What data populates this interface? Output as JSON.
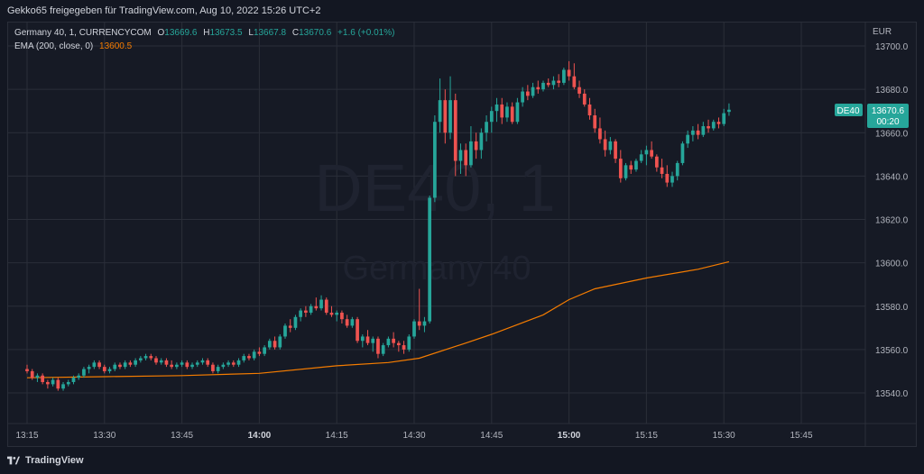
{
  "header": {
    "attribution": "Gekko65 freigegeben für TradingView.com, Aug 10, 2022 15:26 UTC+2"
  },
  "legend": {
    "symbol": "Germany 40, 1, CURRENCYCOM",
    "o_label": "O",
    "o": "13669.6",
    "h_label": "H",
    "h": "13673.5",
    "l_label": "L",
    "l": "13667.8",
    "c_label": "C",
    "c": "13670.6",
    "change": "+1.6 (+0.01%)",
    "ema_label": "EMA (200, close, 0)",
    "ema_value": "13600.5"
  },
  "watermark": {
    "symbol": "DE40, 1",
    "name": "Germany 40"
  },
  "price_axis": {
    "currency": "EUR"
  },
  "price_badge": {
    "ticker": "DE40",
    "price": "13670.6",
    "countdown": "00:20"
  },
  "footer": {
    "logo_text": "TradingView"
  },
  "colors": {
    "up": "#26a69a",
    "down": "#ef5350",
    "ema": "#f57c00",
    "background": "#131722",
    "grid": "#2a2e39",
    "text": "#b2b5be",
    "badge": "#26a69a"
  },
  "chart_data": {
    "type": "candlestick",
    "timeframe_minutes": 1,
    "y_axis": {
      "ticks": [
        13540,
        13560,
        13580,
        13600,
        13620,
        13640,
        13660,
        13680,
        13700
      ],
      "range": [
        13528,
        13705
      ],
      "currency": "EUR"
    },
    "x_axis": {
      "ticks": [
        {
          "time": "13:15",
          "bold": false
        },
        {
          "time": "13:30",
          "bold": false
        },
        {
          "time": "13:45",
          "bold": false
        },
        {
          "time": "14:00",
          "bold": true
        },
        {
          "time": "14:15",
          "bold": false
        },
        {
          "time": "14:30",
          "bold": false
        },
        {
          "time": "14:45",
          "bold": false
        },
        {
          "time": "15:00",
          "bold": true
        },
        {
          "time": "15:15",
          "bold": false
        },
        {
          "time": "15:30",
          "bold": false
        },
        {
          "time": "15:45",
          "bold": false
        }
      ],
      "start": "13:15",
      "end": "15:52"
    },
    "candles": [
      {
        "t": "13:15",
        "o": 13551,
        "h": 13553,
        "l": 13549,
        "c": 13550
      },
      {
        "t": "13:16",
        "o": 13550,
        "h": 13551,
        "l": 13546,
        "c": 13547
      },
      {
        "t": "13:17",
        "o": 13547,
        "h": 13549,
        "l": 13545,
        "c": 13548
      },
      {
        "t": "13:18",
        "o": 13548,
        "h": 13549,
        "l": 13544,
        "c": 13545
      },
      {
        "t": "13:19",
        "o": 13545,
        "h": 13546,
        "l": 13542,
        "c": 13544
      },
      {
        "t": "13:20",
        "o": 13544,
        "h": 13547,
        "l": 13543,
        "c": 13546
      },
      {
        "t": "13:21",
        "o": 13546,
        "h": 13547,
        "l": 13541,
        "c": 13542
      },
      {
        "t": "13:22",
        "o": 13542,
        "h": 13545,
        "l": 13541,
        "c": 13544
      },
      {
        "t": "13:23",
        "o": 13544,
        "h": 13546,
        "l": 13543,
        "c": 13545
      },
      {
        "t": "13:24",
        "o": 13545,
        "h": 13548,
        "l": 13544,
        "c": 13547
      },
      {
        "t": "13:25",
        "o": 13547,
        "h": 13549,
        "l": 13546,
        "c": 13548
      },
      {
        "t": "13:26",
        "o": 13548,
        "h": 13552,
        "l": 13547,
        "c": 13551
      },
      {
        "t": "13:27",
        "o": 13551,
        "h": 13553,
        "l": 13549,
        "c": 13552
      },
      {
        "t": "13:28",
        "o": 13552,
        "h": 13555,
        "l": 13551,
        "c": 13554
      },
      {
        "t": "13:29",
        "o": 13554,
        "h": 13555,
        "l": 13551,
        "c": 13552
      },
      {
        "t": "13:30",
        "o": 13552,
        "h": 13553,
        "l": 13549,
        "c": 13550
      },
      {
        "t": "13:31",
        "o": 13550,
        "h": 13552,
        "l": 13549,
        "c": 13551
      },
      {
        "t": "13:32",
        "o": 13551,
        "h": 13554,
        "l": 13550,
        "c": 13553
      },
      {
        "t": "13:33",
        "o": 13553,
        "h": 13554,
        "l": 13551,
        "c": 13552
      },
      {
        "t": "13:34",
        "o": 13552,
        "h": 13555,
        "l": 13551,
        "c": 13554
      },
      {
        "t": "13:35",
        "o": 13554,
        "h": 13555,
        "l": 13552,
        "c": 13553
      },
      {
        "t": "13:36",
        "o": 13553,
        "h": 13556,
        "l": 13552,
        "c": 13555
      },
      {
        "t": "13:37",
        "o": 13555,
        "h": 13557,
        "l": 13554,
        "c": 13556
      },
      {
        "t": "13:38",
        "o": 13556,
        "h": 13558,
        "l": 13555,
        "c": 13557
      },
      {
        "t": "13:39",
        "o": 13557,
        "h": 13558,
        "l": 13555,
        "c": 13556
      },
      {
        "t": "13:40",
        "o": 13556,
        "h": 13557,
        "l": 13553,
        "c": 13554
      },
      {
        "t": "13:41",
        "o": 13554,
        "h": 13556,
        "l": 13553,
        "c": 13555
      },
      {
        "t": "13:42",
        "o": 13555,
        "h": 13556,
        "l": 13552,
        "c": 13553
      },
      {
        "t": "13:43",
        "o": 13553,
        "h": 13555,
        "l": 13551,
        "c": 13552
      },
      {
        "t": "13:44",
        "o": 13552,
        "h": 13554,
        "l": 13551,
        "c": 13553
      },
      {
        "t": "13:45",
        "o": 13553,
        "h": 13555,
        "l": 13552,
        "c": 13554
      },
      {
        "t": "13:46",
        "o": 13554,
        "h": 13555,
        "l": 13551,
        "c": 13552
      },
      {
        "t": "13:47",
        "o": 13552,
        "h": 13554,
        "l": 13551,
        "c": 13553
      },
      {
        "t": "13:48",
        "o": 13553,
        "h": 13555,
        "l": 13552,
        "c": 13554
      },
      {
        "t": "13:49",
        "o": 13554,
        "h": 13556,
        "l": 13553,
        "c": 13555
      },
      {
        "t": "13:50",
        "o": 13555,
        "h": 13556,
        "l": 13552,
        "c": 13553
      },
      {
        "t": "13:51",
        "o": 13553,
        "h": 13554,
        "l": 13549,
        "c": 13550
      },
      {
        "t": "13:52",
        "o": 13550,
        "h": 13553,
        "l": 13549,
        "c": 13552
      },
      {
        "t": "13:53",
        "o": 13552,
        "h": 13554,
        "l": 13551,
        "c": 13553
      },
      {
        "t": "13:54",
        "o": 13553,
        "h": 13555,
        "l": 13552,
        "c": 13554
      },
      {
        "t": "13:55",
        "o": 13554,
        "h": 13555,
        "l": 13552,
        "c": 13553
      },
      {
        "t": "13:56",
        "o": 13553,
        "h": 13556,
        "l": 13552,
        "c": 13555
      },
      {
        "t": "13:57",
        "o": 13555,
        "h": 13558,
        "l": 13554,
        "c": 13557
      },
      {
        "t": "13:58",
        "o": 13557,
        "h": 13558,
        "l": 13555,
        "c": 13556
      },
      {
        "t": "13:59",
        "o": 13556,
        "h": 13560,
        "l": 13555,
        "c": 13559
      },
      {
        "t": "14:00",
        "o": 13559,
        "h": 13561,
        "l": 13557,
        "c": 13558
      },
      {
        "t": "14:01",
        "o": 13558,
        "h": 13562,
        "l": 13557,
        "c": 13561
      },
      {
        "t": "14:02",
        "o": 13561,
        "h": 13565,
        "l": 13560,
        "c": 13564
      },
      {
        "t": "14:03",
        "o": 13564,
        "h": 13566,
        "l": 13560,
        "c": 13561
      },
      {
        "t": "14:04",
        "o": 13561,
        "h": 13567,
        "l": 13560,
        "c": 13566
      },
      {
        "t": "14:05",
        "o": 13566,
        "h": 13572,
        "l": 13565,
        "c": 13571
      },
      {
        "t": "14:06",
        "o": 13571,
        "h": 13574,
        "l": 13568,
        "c": 13570
      },
      {
        "t": "14:07",
        "o": 13570,
        "h": 13576,
        "l": 13569,
        "c": 13575
      },
      {
        "t": "14:08",
        "o": 13575,
        "h": 13579,
        "l": 13573,
        "c": 13578
      },
      {
        "t": "14:09",
        "o": 13578,
        "h": 13580,
        "l": 13575,
        "c": 13577
      },
      {
        "t": "14:10",
        "o": 13577,
        "h": 13581,
        "l": 13576,
        "c": 13580
      },
      {
        "t": "14:11",
        "o": 13580,
        "h": 13584,
        "l": 13578,
        "c": 13579
      },
      {
        "t": "14:12",
        "o": 13579,
        "h": 13585,
        "l": 13578,
        "c": 13583
      },
      {
        "t": "14:13",
        "o": 13583,
        "h": 13584,
        "l": 13576,
        "c": 13577
      },
      {
        "t": "14:14",
        "o": 13577,
        "h": 13580,
        "l": 13575,
        "c": 13576
      },
      {
        "t": "14:15",
        "o": 13576,
        "h": 13578,
        "l": 13573,
        "c": 13577
      },
      {
        "t": "14:16",
        "o": 13577,
        "h": 13578,
        "l": 13572,
        "c": 13574
      },
      {
        "t": "14:17",
        "o": 13574,
        "h": 13576,
        "l": 13570,
        "c": 13571
      },
      {
        "t": "14:18",
        "o": 13571,
        "h": 13575,
        "l": 13570,
        "c": 13574
      },
      {
        "t": "14:19",
        "o": 13574,
        "h": 13575,
        "l": 13563,
        "c": 13564
      },
      {
        "t": "14:20",
        "o": 13564,
        "h": 13567,
        "l": 13561,
        "c": 13566
      },
      {
        "t": "14:21",
        "o": 13566,
        "h": 13569,
        "l": 13562,
        "c": 13563
      },
      {
        "t": "14:22",
        "o": 13563,
        "h": 13566,
        "l": 13559,
        "c": 13565
      },
      {
        "t": "14:23",
        "o": 13565,
        "h": 13566,
        "l": 13556,
        "c": 13558
      },
      {
        "t": "14:24",
        "o": 13558,
        "h": 13563,
        "l": 13557,
        "c": 13562
      },
      {
        "t": "14:25",
        "o": 13562,
        "h": 13566,
        "l": 13561,
        "c": 13565
      },
      {
        "t": "14:26",
        "o": 13565,
        "h": 13568,
        "l": 13561,
        "c": 13563
      },
      {
        "t": "14:27",
        "o": 13563,
        "h": 13564,
        "l": 13559,
        "c": 13562
      },
      {
        "t": "14:28",
        "o": 13562,
        "h": 13564,
        "l": 13558,
        "c": 13560
      },
      {
        "t": "14:29",
        "o": 13560,
        "h": 13567,
        "l": 13559,
        "c": 13566
      },
      {
        "t": "14:30",
        "o": 13566,
        "h": 13574,
        "l": 13565,
        "c": 13573
      },
      {
        "t": "14:31",
        "o": 13573,
        "h": 13588,
        "l": 13569,
        "c": 13571
      },
      {
        "t": "14:32",
        "o": 13571,
        "h": 13575,
        "l": 13568,
        "c": 13573
      },
      {
        "t": "14:33",
        "o": 13573,
        "h": 13631,
        "l": 13572,
        "c": 13630
      },
      {
        "t": "14:34",
        "o": 13630,
        "h": 13668,
        "l": 13628,
        "c": 13665
      },
      {
        "t": "14:35",
        "o": 13665,
        "h": 13685,
        "l": 13660,
        "c": 13675
      },
      {
        "t": "14:36",
        "o": 13675,
        "h": 13680,
        "l": 13655,
        "c": 13660
      },
      {
        "t": "14:37",
        "o": 13660,
        "h": 13686,
        "l": 13657,
        "c": 13675
      },
      {
        "t": "14:38",
        "o": 13675,
        "h": 13678,
        "l": 13640,
        "c": 13647
      },
      {
        "t": "14:39",
        "o": 13647,
        "h": 13655,
        "l": 13641,
        "c": 13652
      },
      {
        "t": "14:40",
        "o": 13652,
        "h": 13655,
        "l": 13640,
        "c": 13645
      },
      {
        "t": "14:41",
        "o": 13645,
        "h": 13663,
        "l": 13644,
        "c": 13656
      },
      {
        "t": "14:42",
        "o": 13656,
        "h": 13660,
        "l": 13648,
        "c": 13652
      },
      {
        "t": "14:43",
        "o": 13652,
        "h": 13662,
        "l": 13648,
        "c": 13660
      },
      {
        "t": "14:44",
        "o": 13660,
        "h": 13668,
        "l": 13656,
        "c": 13665
      },
      {
        "t": "14:45",
        "o": 13665,
        "h": 13672,
        "l": 13660,
        "c": 13670
      },
      {
        "t": "14:46",
        "o": 13670,
        "h": 13676,
        "l": 13665,
        "c": 13673
      },
      {
        "t": "14:47",
        "o": 13673,
        "h": 13676,
        "l": 13664,
        "c": 13667
      },
      {
        "t": "14:48",
        "o": 13667,
        "h": 13674,
        "l": 13665,
        "c": 13672
      },
      {
        "t": "14:49",
        "o": 13672,
        "h": 13674,
        "l": 13664,
        "c": 13665
      },
      {
        "t": "14:50",
        "o": 13665,
        "h": 13676,
        "l": 13664,
        "c": 13674
      },
      {
        "t": "14:51",
        "o": 13674,
        "h": 13681,
        "l": 13672,
        "c": 13679
      },
      {
        "t": "14:52",
        "o": 13679,
        "h": 13682,
        "l": 13675,
        "c": 13677
      },
      {
        "t": "14:53",
        "o": 13677,
        "h": 13683,
        "l": 13676,
        "c": 13681
      },
      {
        "t": "14:54",
        "o": 13681,
        "h": 13684,
        "l": 13678,
        "c": 13680
      },
      {
        "t": "14:55",
        "o": 13680,
        "h": 13684,
        "l": 13679,
        "c": 13683
      },
      {
        "t": "14:56",
        "o": 13683,
        "h": 13685,
        "l": 13681,
        "c": 13682
      },
      {
        "t": "14:57",
        "o": 13682,
        "h": 13686,
        "l": 13680,
        "c": 13684
      },
      {
        "t": "14:58",
        "o": 13684,
        "h": 13687,
        "l": 13681,
        "c": 13683
      },
      {
        "t": "14:59",
        "o": 13683,
        "h": 13690,
        "l": 13682,
        "c": 13689
      },
      {
        "t": "15:00",
        "o": 13689,
        "h": 13693,
        "l": 13684,
        "c": 13686
      },
      {
        "t": "15:01",
        "o": 13686,
        "h": 13692,
        "l": 13680,
        "c": 13681
      },
      {
        "t": "15:02",
        "o": 13681,
        "h": 13684,
        "l": 13676,
        "c": 13678
      },
      {
        "t": "15:03",
        "o": 13678,
        "h": 13680,
        "l": 13672,
        "c": 13673
      },
      {
        "t": "15:04",
        "o": 13673,
        "h": 13676,
        "l": 13666,
        "c": 13668
      },
      {
        "t": "15:05",
        "o": 13668,
        "h": 13671,
        "l": 13660,
        "c": 13662
      },
      {
        "t": "15:06",
        "o": 13662,
        "h": 13667,
        "l": 13655,
        "c": 13657
      },
      {
        "t": "15:07",
        "o": 13657,
        "h": 13661,
        "l": 13649,
        "c": 13652
      },
      {
        "t": "15:08",
        "o": 13652,
        "h": 13658,
        "l": 13650,
        "c": 13656
      },
      {
        "t": "15:09",
        "o": 13656,
        "h": 13657,
        "l": 13646,
        "c": 13648
      },
      {
        "t": "15:10",
        "o": 13648,
        "h": 13652,
        "l": 13637,
        "c": 13639
      },
      {
        "t": "15:11",
        "o": 13639,
        "h": 13646,
        "l": 13638,
        "c": 13645
      },
      {
        "t": "15:12",
        "o": 13645,
        "h": 13647,
        "l": 13641,
        "c": 13643
      },
      {
        "t": "15:13",
        "o": 13643,
        "h": 13648,
        "l": 13642,
        "c": 13647
      },
      {
        "t": "15:14",
        "o": 13647,
        "h": 13652,
        "l": 13646,
        "c": 13650
      },
      {
        "t": "15:15",
        "o": 13650,
        "h": 13654,
        "l": 13645,
        "c": 13652
      },
      {
        "t": "15:16",
        "o": 13652,
        "h": 13656,
        "l": 13648,
        "c": 13649
      },
      {
        "t": "15:17",
        "o": 13649,
        "h": 13650,
        "l": 13642,
        "c": 13644
      },
      {
        "t": "15:18",
        "o": 13644,
        "h": 13648,
        "l": 13639,
        "c": 13641
      },
      {
        "t": "15:19",
        "o": 13641,
        "h": 13645,
        "l": 13635,
        "c": 13637
      },
      {
        "t": "15:20",
        "o": 13637,
        "h": 13642,
        "l": 13635,
        "c": 13640
      },
      {
        "t": "15:21",
        "o": 13640,
        "h": 13647,
        "l": 13638,
        "c": 13646
      },
      {
        "t": "15:22",
        "o": 13646,
        "h": 13656,
        "l": 13645,
        "c": 13655
      },
      {
        "t": "15:23",
        "o": 13655,
        "h": 13661,
        "l": 13653,
        "c": 13659
      },
      {
        "t": "15:24",
        "o": 13659,
        "h": 13663,
        "l": 13656,
        "c": 13661
      },
      {
        "t": "15:25",
        "o": 13661,
        "h": 13664,
        "l": 13657,
        "c": 13659
      },
      {
        "t": "15:26",
        "o": 13659,
        "h": 13665,
        "l": 13658,
        "c": 13663
      },
      {
        "t": "15:27",
        "o": 13663,
        "h": 13666,
        "l": 13660,
        "c": 13662
      },
      {
        "t": "15:28",
        "o": 13662,
        "h": 13666,
        "l": 13661,
        "c": 13665
      },
      {
        "t": "15:29",
        "o": 13665,
        "h": 13667,
        "l": 13662,
        "c": 13664
      },
      {
        "t": "15:30",
        "o": 13664,
        "h": 13671,
        "l": 13663,
        "c": 13669
      },
      {
        "t": "15:31",
        "o": 13669.6,
        "h": 13673.5,
        "l": 13667.8,
        "c": 13670.6
      }
    ],
    "ema": {
      "name": "EMA (200, close, 0)",
      "points": [
        [
          "13:15",
          13547
        ],
        [
          "13:30",
          13547.5
        ],
        [
          "13:45",
          13548
        ],
        [
          "14:00",
          13549
        ],
        [
          "14:15",
          13552.5
        ],
        [
          "14:25",
          13554
        ],
        [
          "14:31",
          13556
        ],
        [
          "14:40",
          13563
        ],
        [
          "14:45",
          13567
        ],
        [
          "14:55",
          13576
        ],
        [
          "15:00",
          13583
        ],
        [
          "15:05",
          13588
        ],
        [
          "15:15",
          13593
        ],
        [
          "15:25",
          13597
        ],
        [
          "15:31",
          13600.5
        ]
      ]
    }
  }
}
